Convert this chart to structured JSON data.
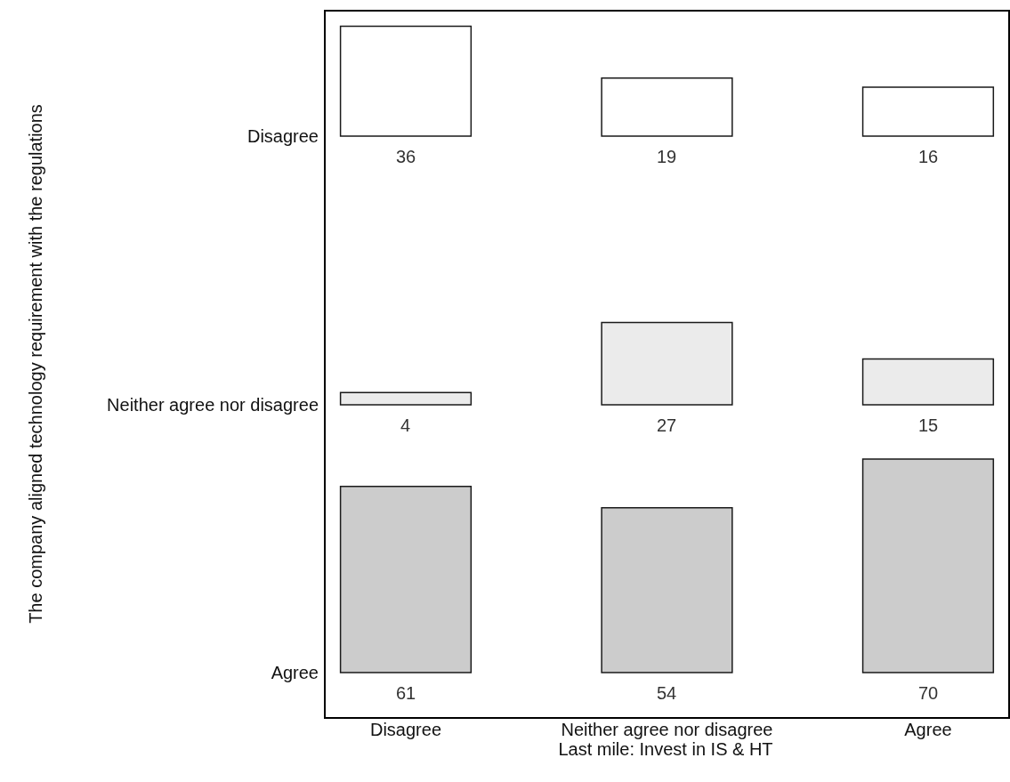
{
  "chart_data": [
    {
      "type": "bar",
      "ylabel": "Disagree",
      "categories": [
        null,
        null,
        null
      ],
      "values": [
        36,
        19,
        16
      ],
      "color": "#ffffff",
      "data_labels": true,
      "tick_labels": false
    },
    {
      "type": "bar",
      "ylabel": "Neither agree nor disagree",
      "categories": [
        null,
        null,
        null
      ],
      "values": [
        4,
        27,
        15
      ],
      "color": "#ebebeb",
      "data_labels": true,
      "tick_labels": false,
      "annotations": [
        "The company aligned technology requirement with the regulations"
      ]
    },
    {
      "type": "bar",
      "ylabel": "Agree",
      "xlabel": "Last mile: Invest in IS & HT",
      "categories": [
        "Disagree",
        "Neither agree nor disagree",
        "Agree"
      ],
      "values": [
        61,
        54,
        70
      ],
      "color": "#cccccc",
      "data_labels": true
    }
  ]
}
